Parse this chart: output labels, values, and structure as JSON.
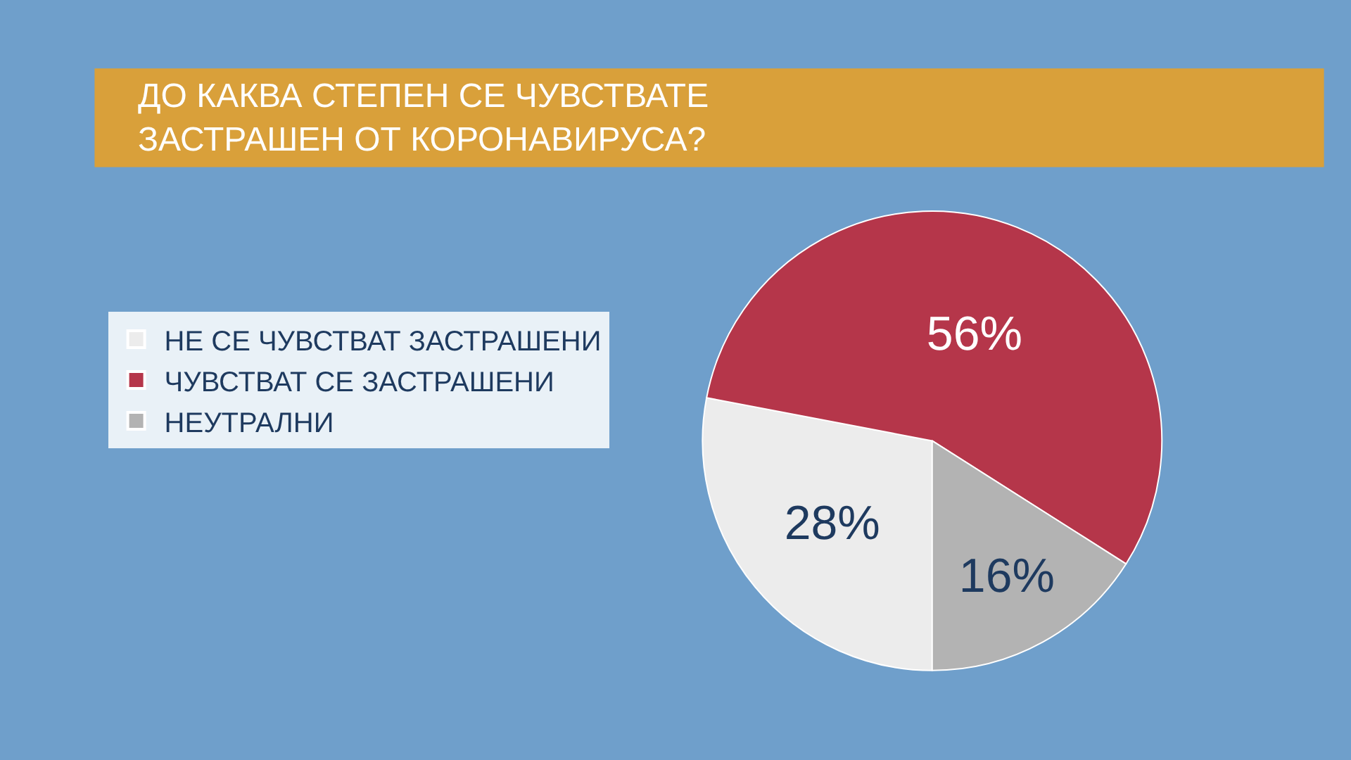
{
  "chart_data": {
    "type": "pie",
    "title": "ДО КАКВА СТЕПЕН СЕ ЧУВСТВАТЕ\nЗАСТРАШЕН ОТ КОРОНАВИРУСА?",
    "categories": [
      "НЕ СЕ ЧУВСТВАТ ЗАСТРАШЕНИ",
      "ЧУВСТВАТ СЕ ЗАСТРАШЕНИ",
      "НЕУТРАЛНИ"
    ],
    "values": [
      28,
      56,
      16
    ],
    "colors": [
      "#ececec",
      "#b5364a",
      "#b3b3b3"
    ],
    "value_labels": [
      "28%",
      "56%",
      "16%"
    ],
    "legend": "left"
  }
}
